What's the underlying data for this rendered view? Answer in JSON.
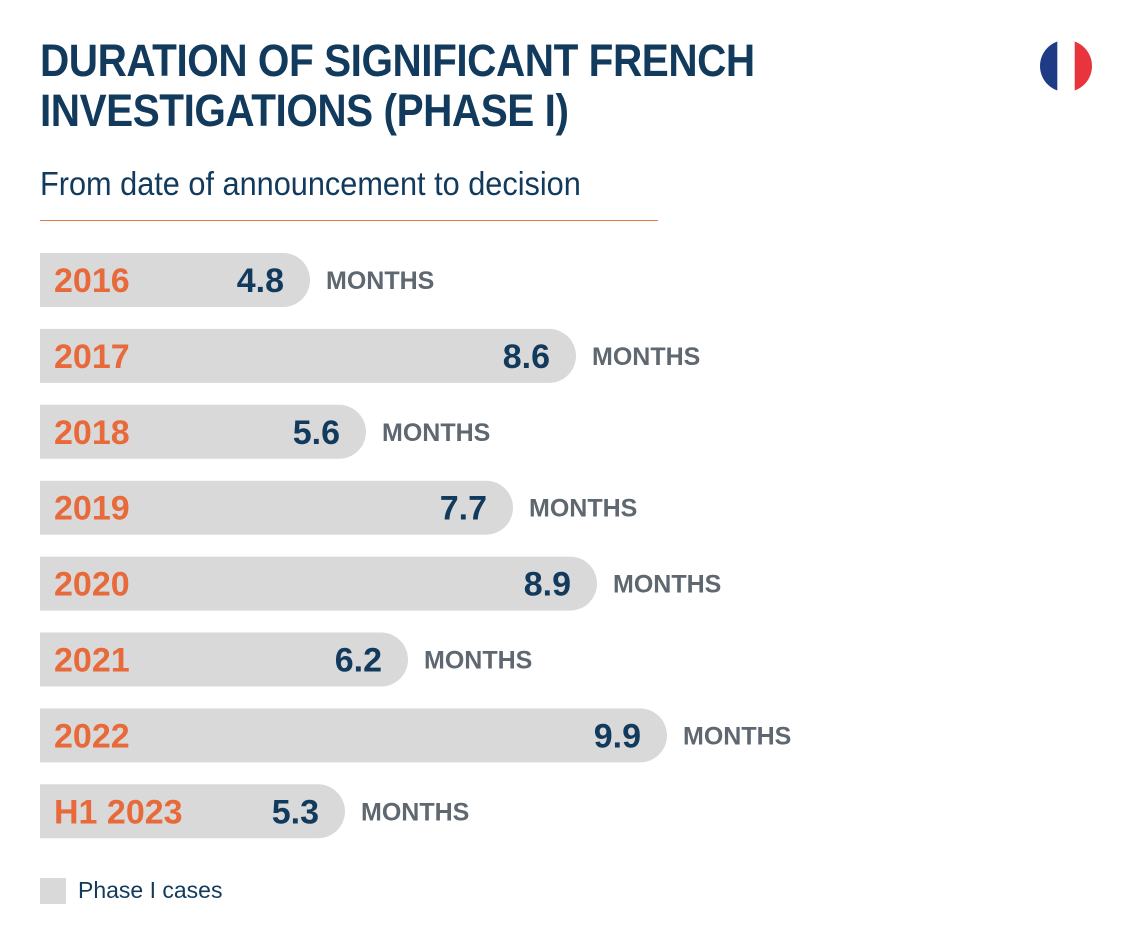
{
  "title": "DURATION OF SIGNIFICANT FRENCH INVESTIGATIONS (PHASE I)",
  "subtitle": "From date of announcement to decision",
  "flag_icon": "france-flag-icon",
  "colors": {
    "bar": "#d9d9d9",
    "category_text": "#e8693a",
    "value_text": "#123a5c",
    "unit_text": "#5f6770",
    "rule": "#e07a45",
    "flag_blue": "#1f3b85",
    "flag_white": "#ffffff",
    "flag_red": "#e8343d"
  },
  "chart_data": {
    "type": "bar",
    "orientation": "horizontal",
    "categories": [
      "2016",
      "2017",
      "2018",
      "2019",
      "2020",
      "2021",
      "2022",
      "H1 2023"
    ],
    "values": [
      4.8,
      8.6,
      5.6,
      7.7,
      8.9,
      6.2,
      9.9,
      5.3
    ],
    "value_labels": [
      "4.8",
      "8.6",
      "5.6",
      "7.7",
      "8.9",
      "6.2",
      "9.9",
      "5.3"
    ],
    "unit_label": "MONTHS",
    "title": "DURATION OF SIGNIFICANT FRENCH INVESTIGATIONS (PHASE I)",
    "subtitle": "From date of announcement to decision",
    "xlabel": "",
    "ylabel": "",
    "grid": false,
    "legend": {
      "placement": "bottom-left",
      "entries": [
        {
          "name": "Phase I cases",
          "color": "#d9d9d9"
        }
      ]
    }
  },
  "legend_label": "Phase I cases"
}
